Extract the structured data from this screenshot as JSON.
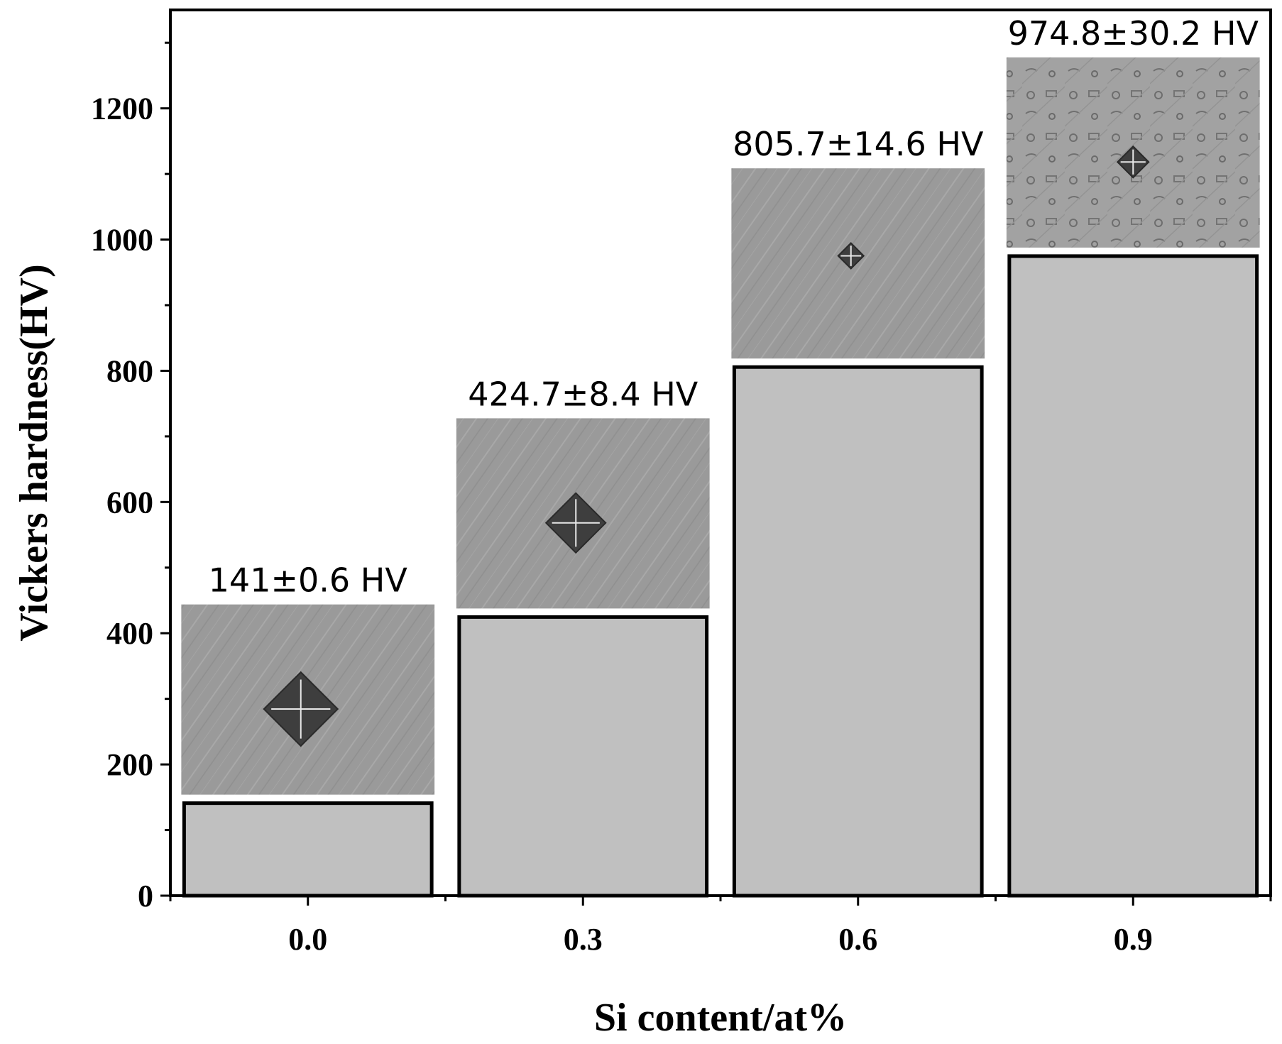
{
  "chart_data": {
    "type": "bar",
    "categories": [
      "0.0",
      "0.3",
      "0.6",
      "0.9"
    ],
    "values": [
      141,
      424.7,
      805.7,
      974.8
    ],
    "errors": [
      0.6,
      8.4,
      14.6,
      30.2
    ],
    "data_labels": [
      "141±0.6 HV",
      "424.7±8.4 HV",
      "805.7±14.6 HV",
      "974.8±30.2 HV"
    ],
    "xlabel": "Si content/at%",
    "ylabel": "Vickers hardness(HV)",
    "ylim": [
      0,
      1350
    ],
    "yticks": [
      0,
      200,
      400,
      600,
      800,
      1000,
      1200
    ],
    "grid": false,
    "bar_color": "#c0c0c0",
    "inset_images": [
      "indent-micrograph-icon",
      "indent-micrograph-icon",
      "indent-micrograph-icon",
      "indent-micrograph-icon"
    ]
  }
}
